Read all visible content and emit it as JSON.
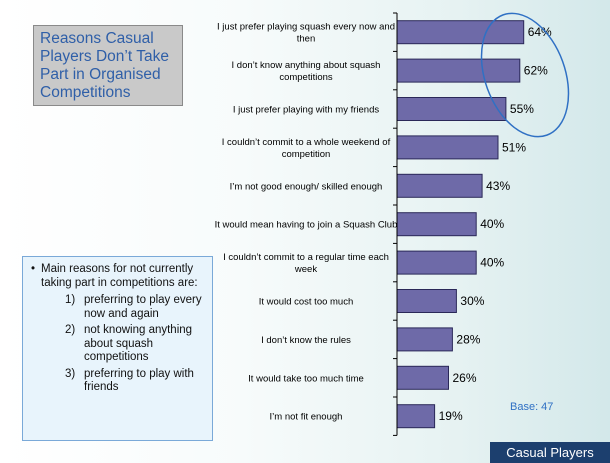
{
  "title": "Reasons Casual Players Don’t Take Part in Organised Competitions",
  "notes": {
    "intro": "Main reasons for not currently taking part in competitions are:",
    "items": [
      {
        "n": "1)",
        "text": "preferring to play every now and again"
      },
      {
        "n": "2)",
        "text": "not knowing anything about squash competitions"
      },
      {
        "n": "3)",
        "text": "preferring to play with friends"
      }
    ]
  },
  "footer": "Casual Players",
  "colors": {
    "bar": "#6e6aa8",
    "bar_stroke": "#2a2858",
    "highlight_ellipse": "#2f70c4",
    "base_text": "#2f70c4",
    "title_text": "#2f5fa8"
  },
  "chart_data": {
    "type": "bar",
    "orientation": "horizontal",
    "categories": [
      "I just prefer playing squash every now and then",
      "I don’t know anything about squash competitions",
      "I just prefer playing with my friends",
      "I couldn’t commit to a whole weekend of competition",
      "I’m not good enough/ skilled enough",
      "It would mean having to join a Squash Club",
      "I couldn’t commit to a regular time each week",
      "It would cost too much",
      "I don’t know the rules",
      "It would take too much time",
      "I’m not fit enough"
    ],
    "values": [
      64,
      62,
      55,
      51,
      43,
      40,
      40,
      30,
      28,
      26,
      19
    ],
    "value_labels": [
      "64%",
      "62%",
      "55%",
      "51%",
      "43%",
      "40%",
      "40%",
      "30%",
      "28%",
      "26%",
      "19%"
    ],
    "unit": "%",
    "base_label": "Base: 47",
    "highlighted": [
      0,
      1,
      2
    ]
  }
}
